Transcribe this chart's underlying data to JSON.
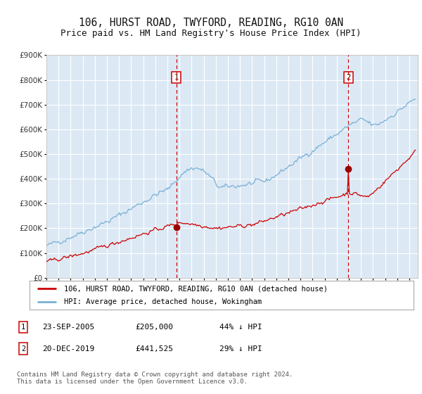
{
  "title1": "106, HURST ROAD, TWYFORD, READING, RG10 0AN",
  "title2": "Price paid vs. HM Land Registry's House Price Index (HPI)",
  "ylim": [
    0,
    900000
  ],
  "yticks": [
    0,
    100000,
    200000,
    300000,
    400000,
    500000,
    600000,
    700000,
    800000,
    900000
  ],
  "ytick_labels": [
    "£0",
    "£100K",
    "£200K",
    "£300K",
    "£400K",
    "£500K",
    "£600K",
    "£700K",
    "£800K",
    "£900K"
  ],
  "xlim_start": 1995.0,
  "xlim_end": 2025.7,
  "background_color": "#ffffff",
  "plot_bg_color": "#dce9f5",
  "grid_color": "#ffffff",
  "red_line_color": "#cc0000",
  "blue_line_color": "#7ab0d4",
  "vline_color": "#cc0000",
  "marker_color": "#990000",
  "purchase1_x": 2005.73,
  "purchase1_y": 205000,
  "purchase1_label": "1",
  "purchase2_x": 2019.97,
  "purchase2_y": 441525,
  "purchase2_label": "2",
  "legend_line1": "106, HURST ROAD, TWYFORD, READING, RG10 0AN (detached house)",
  "legend_line2": "HPI: Average price, detached house, Wokingham",
  "table_row1": [
    "1",
    "23-SEP-2005",
    "£205,000",
    "44% ↓ HPI"
  ],
  "table_row2": [
    "2",
    "20-DEC-2019",
    "£441,525",
    "29% ↓ HPI"
  ],
  "footer": "Contains HM Land Registry data © Crown copyright and database right 2024.\nThis data is licensed under the Open Government Licence v3.0.",
  "title_fontsize": 10.5,
  "subtitle_fontsize": 9
}
